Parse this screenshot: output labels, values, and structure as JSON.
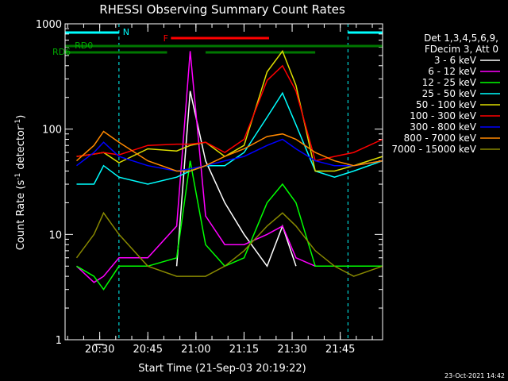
{
  "chart_data": {
    "type": "line",
    "title": "RHESSI Observing Summary Count Rates",
    "xlabel": "Start Time (21-Sep-03 20:19:22)",
    "ylabel": "Count Rate (s",
    "ylabel_sup1": "-1",
    "ylabel_mid": " detector",
    "ylabel_sup2": "-1",
    "ylabel_end": ")",
    "y_scale": "log",
    "ylim": [
      1,
      1000
    ],
    "xlim_minutes": [
      20.32,
      21.97
    ],
    "x_tick_labels": [
      "20:30",
      "20:45",
      "21:00",
      "21:15",
      "21:30",
      "21:45"
    ],
    "x_tick_values": [
      20.5,
      20.75,
      21.0,
      21.25,
      21.5,
      21.75
    ],
    "y_tick_labels": [
      "1",
      "10",
      "100",
      "1000"
    ],
    "y_tick_values": [
      1,
      10,
      100,
      1000
    ],
    "legend_header": [
      "Det 1,3,4,5,6,9,",
      "FDecim 3, Att 0"
    ],
    "legend_position": "right",
    "footer_date": "23-Oct-2021 14:42",
    "flag_labels": {
      "N": "N",
      "F": "F",
      "RD0": "RD0",
      "RD6": "RD6"
    },
    "series": [
      {
        "name": "3 - 6 keV",
        "color": "#ffffff"
      },
      {
        "name": "6 - 12 keV",
        "color": "#ff00ff"
      },
      {
        "name": "12 - 25 keV",
        "color": "#00ff00"
      },
      {
        "name": "25 - 50 keV",
        "color": "#00ffff"
      },
      {
        "name": "50 - 100 keV",
        "color": "#dddd00"
      },
      {
        "name": "100 - 300 keV",
        "color": "#ff0000"
      },
      {
        "name": "300 - 800 keV",
        "color": "#0000ff"
      },
      {
        "name": "800 - 7000 keV",
        "color": "#ff8800"
      },
      {
        "name": "7000 - 15000 keV",
        "color": "#888800"
      }
    ],
    "key_points": {
      "x_hours": [
        20.32,
        20.38,
        20.47,
        20.52,
        20.6,
        20.75,
        20.9,
        20.97,
        21.05,
        21.15,
        21.25,
        21.37,
        21.45,
        21.52,
        21.62,
        21.72,
        21.82,
        21.97
      ],
      "series_values": [
        [
          0,
          0,
          0.9,
          0.9,
          0,
          0,
          5,
          230,
          50,
          20,
          10,
          5,
          12,
          5,
          0,
          0,
          0,
          0
        ],
        [
          0,
          5,
          3.5,
          4,
          6,
          6,
          12,
          550,
          15,
          8,
          8,
          10,
          12,
          6,
          5,
          0,
          0,
          0
        ],
        [
          0,
          5,
          4,
          3,
          5,
          5,
          6,
          50,
          8,
          5,
          6,
          20,
          30,
          20,
          5,
          5,
          5,
          5
        ],
        [
          0,
          30,
          30,
          45,
          35,
          30,
          35,
          40,
          45,
          45,
          60,
          130,
          220,
          110,
          40,
          35,
          40,
          50
        ],
        [
          0,
          55,
          58,
          60,
          48,
          65,
          62,
          70,
          75,
          55,
          70,
          350,
          550,
          260,
          40,
          40,
          45,
          55
        ],
        [
          0,
          55,
          58,
          60,
          57,
          70,
          72,
          72,
          75,
          60,
          80,
          290,
          400,
          230,
          50,
          55,
          60,
          80
        ],
        [
          0,
          45,
          60,
          75,
          55,
          45,
          40,
          42,
          45,
          50,
          55,
          70,
          80,
          65,
          50,
          45,
          45,
          50
        ],
        [
          0,
          50,
          70,
          95,
          75,
          50,
          40,
          40,
          45,
          55,
          65,
          85,
          90,
          80,
          60,
          50,
          45,
          50
        ],
        [
          0,
          6,
          10,
          16,
          10,
          5,
          4,
          4,
          4,
          5,
          7,
          12,
          16,
          12,
          7,
          5,
          4,
          5
        ]
      ]
    }
  }
}
